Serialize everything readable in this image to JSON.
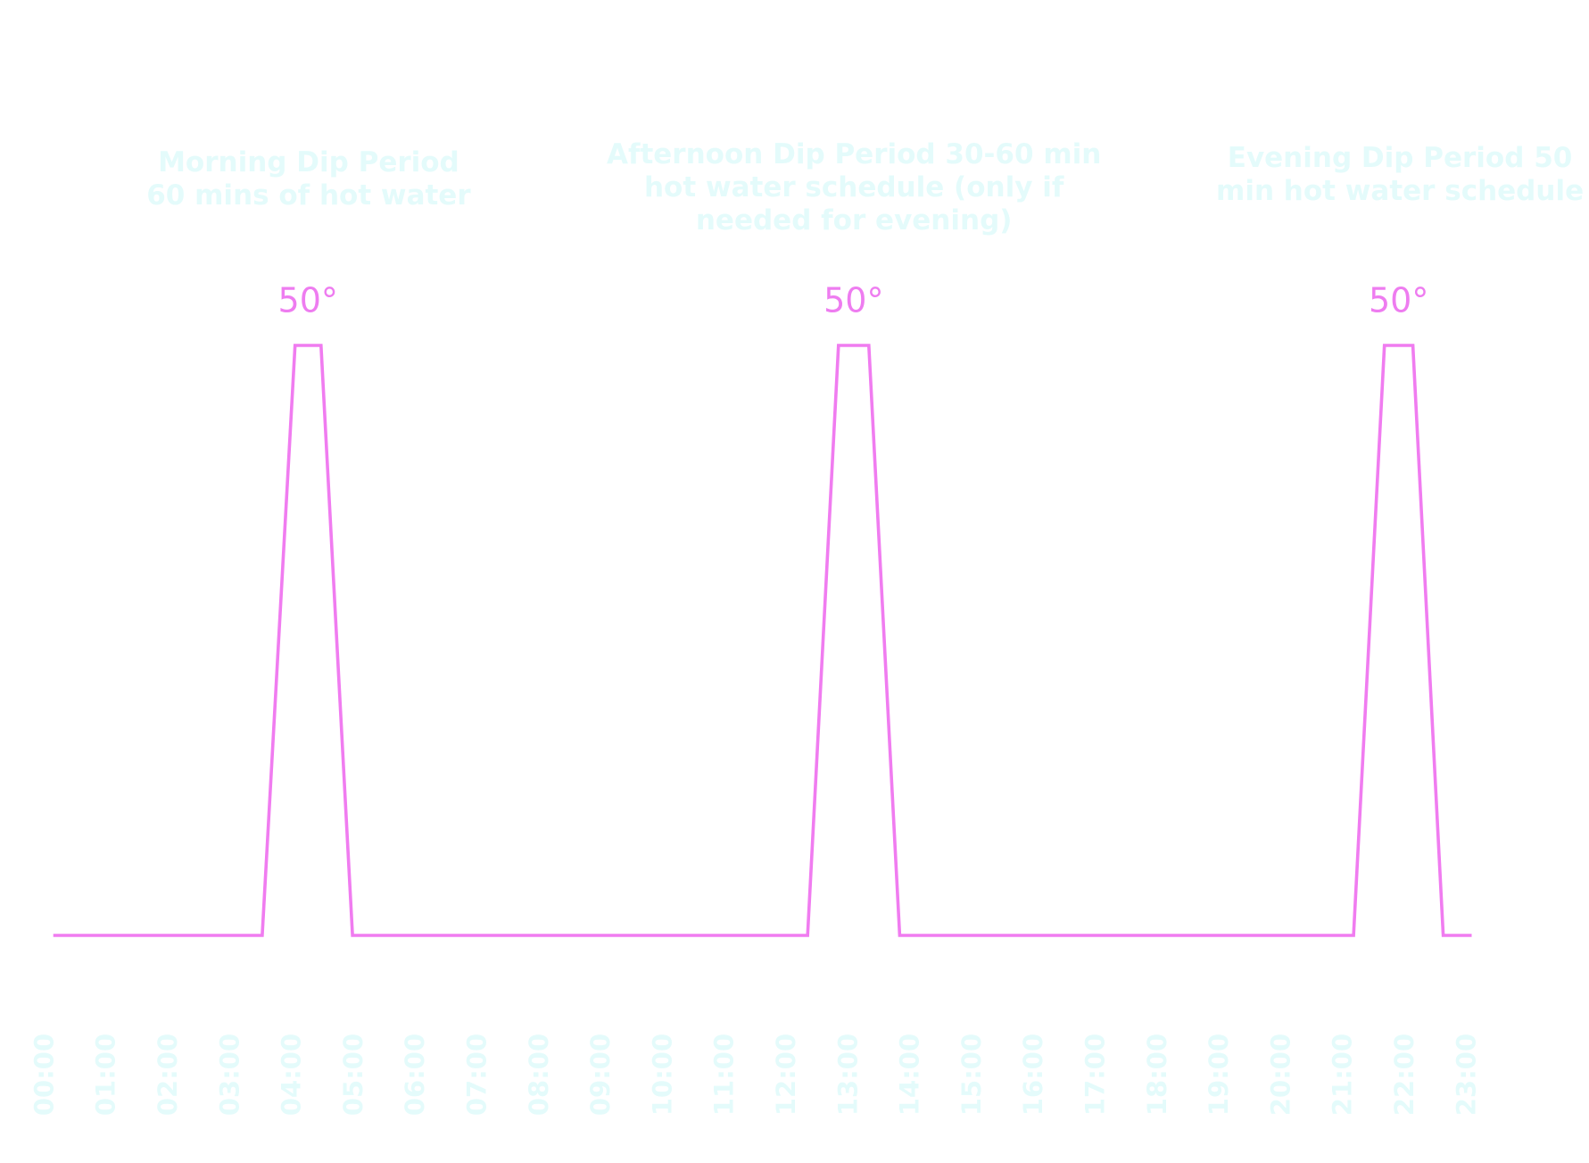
{
  "chart_data": {
    "type": "line",
    "annotations": [
      {
        "x": 4.25,
        "lines": [
          "Morning Dip Period",
          "60 mins of hot water"
        ]
      },
      {
        "x": 13.07,
        "lines": [
          "Afternoon Dip Period 30-60 min",
          "hot water schedule (only if",
          "needed for evening)"
        ]
      },
      {
        "x": 21.9,
        "lines": [
          "Evening Dip Period 50",
          "min hot water schedule"
        ]
      }
    ],
    "series": [
      {
        "color": "#f07cf0",
        "x": [
          0.12,
          3.5,
          4.03,
          4.45,
          4.96,
          12.32,
          12.82,
          13.31,
          13.81,
          21.15,
          21.65,
          22.11,
          22.6,
          23.06
        ],
        "values": [
          10,
          10,
          50,
          50,
          10,
          10,
          50,
          50,
          10,
          10,
          50,
          50,
          10,
          10
        ],
        "value_labels": [
          null,
          null,
          "50°",
          null,
          null,
          null,
          "50°",
          null,
          null,
          null,
          "50°",
          null,
          null,
          null
        ]
      }
    ],
    "xlim": [
      0,
      23
    ],
    "xticks": [
      {
        "value": 0,
        "label": "00:00"
      },
      {
        "value": 1,
        "label": "01:00"
      },
      {
        "value": 2,
        "label": "02:00"
      },
      {
        "value": 3,
        "label": "03:00"
      },
      {
        "value": 4,
        "label": "04:00"
      },
      {
        "value": 5,
        "label": "05:00"
      },
      {
        "value": 6,
        "label": "06:00"
      },
      {
        "value": 7,
        "label": "07:00"
      },
      {
        "value": 8,
        "label": "08:00"
      },
      {
        "value": 9,
        "label": "09:00"
      },
      {
        "value": 10,
        "label": "10:00"
      },
      {
        "value": 11,
        "label": "11:00"
      },
      {
        "value": 12,
        "label": "12:00"
      },
      {
        "value": 13,
        "label": "13:00"
      },
      {
        "value": 14,
        "label": "14:00"
      },
      {
        "value": 15,
        "label": "15:00"
      },
      {
        "value": 16,
        "label": "16:00"
      },
      {
        "value": 17,
        "label": "17:00"
      },
      {
        "value": 18,
        "label": "18:00"
      },
      {
        "value": 19,
        "label": "19:00"
      },
      {
        "value": 20,
        "label": "20:00"
      },
      {
        "value": 21,
        "label": "21:00"
      },
      {
        "value": 22,
        "label": "22:00"
      },
      {
        "value": 23,
        "label": "23:00"
      }
    ],
    "ylim": [
      10,
      50
    ]
  }
}
